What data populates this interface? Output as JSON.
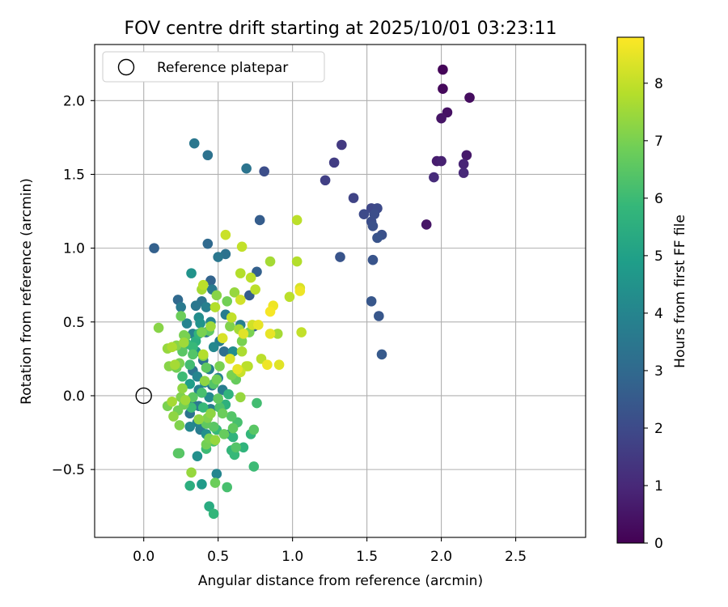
{
  "chart_data": {
    "type": "scatter",
    "title": "FOV centre drift starting at 2025/10/01 03:23:11",
    "xlabel": "Angular distance from reference (arcmin)",
    "ylabel": "Rotation from reference (arcmin)",
    "xlim": [
      -0.33,
      2.97
    ],
    "ylim": [
      -0.96,
      2.38
    ],
    "x_ticks": [
      0.0,
      0.5,
      1.0,
      1.5,
      2.0,
      2.5
    ],
    "x_tick_labels": [
      "0.0",
      "0.5",
      "1.0",
      "1.5",
      "2.0",
      "2.5"
    ],
    "y_ticks": [
      -0.5,
      0.0,
      0.5,
      1.0,
      1.5,
      2.0
    ],
    "y_tick_labels": [
      "−0.5",
      "0.0",
      "0.5",
      "1.0",
      "1.5",
      "2.0"
    ],
    "grid": true,
    "legend": {
      "location": "upper-left",
      "entries": [
        {
          "label": "Reference platepar",
          "marker": "open-circle"
        }
      ]
    },
    "reference_point": {
      "x": 0.0,
      "y": 0.0
    },
    "colorbar": {
      "label": "Hours from first FF file",
      "min": 0,
      "max": 8.8,
      "ticks": [
        0,
        1,
        2,
        3,
        4,
        5,
        6,
        7,
        8
      ],
      "tick_labels": [
        "0",
        "1",
        "2",
        "3",
        "4",
        "5",
        "6",
        "7",
        "8"
      ],
      "colormap": "viridis"
    },
    "colormap_stops": [
      "#440154",
      "#482878",
      "#3e4989",
      "#31688e",
      "#26828e",
      "#1f9e89",
      "#35b779",
      "#6ece58",
      "#b5de2b",
      "#fde725"
    ],
    "points": [
      {
        "x": 2.01,
        "y": 2.21,
        "h": 0.1
      },
      {
        "x": 2.01,
        "y": 2.08,
        "h": 0.2
      },
      {
        "x": 2.19,
        "y": 2.02,
        "h": 0.3
      },
      {
        "x": 2.04,
        "y": 1.92,
        "h": 0.4
      },
      {
        "x": 2.0,
        "y": 1.88,
        "h": 0.5
      },
      {
        "x": 2.17,
        "y": 1.63,
        "h": 0.6
      },
      {
        "x": 1.97,
        "y": 1.59,
        "h": 0.7
      },
      {
        "x": 2.0,
        "y": 1.59,
        "h": 0.8
      },
      {
        "x": 2.15,
        "y": 1.57,
        "h": 0.9
      },
      {
        "x": 2.15,
        "y": 1.51,
        "h": 1.0
      },
      {
        "x": 1.95,
        "y": 1.48,
        "h": 1.1
      },
      {
        "x": 1.9,
        "y": 1.16,
        "h": 0.5
      },
      {
        "x": 1.33,
        "y": 1.7,
        "h": 1.5
      },
      {
        "x": 1.28,
        "y": 1.58,
        "h": 1.6
      },
      {
        "x": 1.22,
        "y": 1.46,
        "h": 1.7
      },
      {
        "x": 1.41,
        "y": 1.34,
        "h": 1.8
      },
      {
        "x": 1.53,
        "y": 1.27,
        "h": 1.9
      },
      {
        "x": 1.57,
        "y": 1.27,
        "h": 2.0
      },
      {
        "x": 1.48,
        "y": 1.23,
        "h": 2.0
      },
      {
        "x": 1.55,
        "y": 1.23,
        "h": 2.1
      },
      {
        "x": 1.53,
        "y": 1.18,
        "h": 2.1
      },
      {
        "x": 1.54,
        "y": 1.15,
        "h": 2.2
      },
      {
        "x": 1.6,
        "y": 1.09,
        "h": 2.2
      },
      {
        "x": 1.57,
        "y": 1.07,
        "h": 2.3
      },
      {
        "x": 1.32,
        "y": 0.94,
        "h": 2.3
      },
      {
        "x": 1.54,
        "y": 0.92,
        "h": 2.3
      },
      {
        "x": 1.53,
        "y": 0.64,
        "h": 2.4
      },
      {
        "x": 1.58,
        "y": 0.54,
        "h": 2.4
      },
      {
        "x": 1.6,
        "y": 0.28,
        "h": 2.5
      },
      {
        "x": 0.81,
        "y": 1.52,
        "h": 2.1
      },
      {
        "x": 0.78,
        "y": 1.19,
        "h": 2.6
      },
      {
        "x": 0.07,
        "y": 1.0,
        "h": 2.7
      },
      {
        "x": 0.43,
        "y": 1.63,
        "h": 3.3
      },
      {
        "x": 0.34,
        "y": 1.71,
        "h": 3.5
      },
      {
        "x": 0.69,
        "y": 1.54,
        "h": 3.4
      },
      {
        "x": 0.43,
        "y": 1.03,
        "h": 3.0
      },
      {
        "x": 0.55,
        "y": 0.96,
        "h": 3.3
      },
      {
        "x": 0.5,
        "y": 0.94,
        "h": 3.5
      },
      {
        "x": 0.76,
        "y": 0.84,
        "h": 2.7
      },
      {
        "x": 0.32,
        "y": 0.83,
        "h": 4.5
      },
      {
        "x": 0.45,
        "y": 0.78,
        "h": 2.8
      },
      {
        "x": 0.4,
        "y": 0.74,
        "h": 4.2
      },
      {
        "x": 0.46,
        "y": 0.72,
        "h": 3.6
      },
      {
        "x": 0.23,
        "y": 0.65,
        "h": 3.0
      },
      {
        "x": 0.71,
        "y": 0.68,
        "h": 2.6
      },
      {
        "x": 0.39,
        "y": 0.64,
        "h": 3.4
      },
      {
        "x": 0.35,
        "y": 0.61,
        "h": 3.5
      },
      {
        "x": 0.42,
        "y": 0.6,
        "h": 3.8
      },
      {
        "x": 0.25,
        "y": 0.6,
        "h": 3.6
      },
      {
        "x": 0.55,
        "y": 0.55,
        "h": 3.7
      },
      {
        "x": 0.37,
        "y": 0.53,
        "h": 4.3
      },
      {
        "x": 0.29,
        "y": 0.49,
        "h": 3.9
      },
      {
        "x": 0.45,
        "y": 0.5,
        "h": 4.0
      },
      {
        "x": 0.38,
        "y": 0.49,
        "h": 4.5
      },
      {
        "x": 0.65,
        "y": 0.48,
        "h": 3.8
      },
      {
        "x": 0.74,
        "y": 0.47,
        "h": 2.8
      },
      {
        "x": 0.42,
        "y": 0.43,
        "h": 3.6
      },
      {
        "x": 0.33,
        "y": 0.42,
        "h": 3.9
      },
      {
        "x": 0.51,
        "y": 0.37,
        "h": 3.7
      },
      {
        "x": 0.47,
        "y": 0.33,
        "h": 4.1
      },
      {
        "x": 0.35,
        "y": 0.3,
        "h": 4.4
      },
      {
        "x": 0.54,
        "y": 0.3,
        "h": 3.2
      },
      {
        "x": 0.6,
        "y": 0.3,
        "h": 4.3
      },
      {
        "x": 0.4,
        "y": 0.24,
        "h": 3.3
      },
      {
        "x": 0.44,
        "y": 0.18,
        "h": 3.8
      },
      {
        "x": 0.33,
        "y": 0.17,
        "h": 3.4
      },
      {
        "x": 0.36,
        "y": 0.13,
        "h": 4.0
      },
      {
        "x": 0.5,
        "y": 0.12,
        "h": 3.9
      },
      {
        "x": 0.41,
        "y": 0.09,
        "h": 4.2
      },
      {
        "x": 0.31,
        "y": 0.08,
        "h": 4.9
      },
      {
        "x": 0.46,
        "y": 0.07,
        "h": 3.5
      },
      {
        "x": 0.53,
        "y": 0.04,
        "h": 3.7
      },
      {
        "x": 0.37,
        "y": 0.04,
        "h": 3.9
      },
      {
        "x": 0.44,
        "y": -0.01,
        "h": 4.2
      },
      {
        "x": 0.32,
        "y": -0.04,
        "h": 3.3
      },
      {
        "x": 0.37,
        "y": -0.07,
        "h": 3.6
      },
      {
        "x": 0.45,
        "y": -0.09,
        "h": 3.8
      },
      {
        "x": 0.31,
        "y": -0.12,
        "h": 3.4
      },
      {
        "x": 0.36,
        "y": -0.18,
        "h": 3.9
      },
      {
        "x": 0.31,
        "y": -0.21,
        "h": 4.1
      },
      {
        "x": 0.38,
        "y": -0.23,
        "h": 3.7
      },
      {
        "x": 0.42,
        "y": -0.26,
        "h": 4.4
      },
      {
        "x": 0.58,
        "y": -0.26,
        "h": 3.5
      },
      {
        "x": 0.36,
        "y": -0.41,
        "h": 4.4
      },
      {
        "x": 0.49,
        "y": -0.53,
        "h": 4.0
      },
      {
        "x": 0.39,
        "y": -0.6,
        "h": 4.8
      },
      {
        "x": 0.31,
        "y": -0.61,
        "h": 5.5
      },
      {
        "x": 0.44,
        "y": -0.75,
        "h": 5.4
      },
      {
        "x": 0.47,
        "y": -0.8,
        "h": 5.8
      },
      {
        "x": 0.56,
        "y": -0.62,
        "h": 6.2
      },
      {
        "x": 0.48,
        "y": -0.59,
        "h": 6.8
      },
      {
        "x": 0.32,
        "y": -0.52,
        "h": 7.4
      },
      {
        "x": 0.23,
        "y": -0.39,
        "h": 6.5
      },
      {
        "x": 0.24,
        "y": -0.2,
        "h": 7.1
      },
      {
        "x": 0.2,
        "y": -0.14,
        "h": 7.3
      },
      {
        "x": 0.16,
        "y": -0.07,
        "h": 7.0
      },
      {
        "x": 0.19,
        "y": -0.04,
        "h": 7.6
      },
      {
        "x": 0.25,
        "y": -0.01,
        "h": 7.1
      },
      {
        "x": 0.28,
        "y": -0.03,
        "h": 7.5
      },
      {
        "x": 0.23,
        "y": -0.1,
        "h": 6.9
      },
      {
        "x": 0.26,
        "y": 0.05,
        "h": 7.3
      },
      {
        "x": 0.17,
        "y": 0.2,
        "h": 7.2
      },
      {
        "x": 0.21,
        "y": 0.21,
        "h": 7.6
      },
      {
        "x": 0.24,
        "y": 0.22,
        "h": 7.0
      },
      {
        "x": 0.16,
        "y": 0.32,
        "h": 7.4
      },
      {
        "x": 0.19,
        "y": 0.33,
        "h": 7.7
      },
      {
        "x": 0.22,
        "y": 0.34,
        "h": 7.2
      },
      {
        "x": 0.27,
        "y": 0.36,
        "h": 7.5
      },
      {
        "x": 0.27,
        "y": 0.41,
        "h": 7.0
      },
      {
        "x": 0.1,
        "y": 0.46,
        "h": 7.2
      },
      {
        "x": 0.25,
        "y": 0.54,
        "h": 6.8
      },
      {
        "x": 0.39,
        "y": 0.72,
        "h": 7.6
      },
      {
        "x": 0.4,
        "y": 0.75,
        "h": 7.9
      },
      {
        "x": 0.49,
        "y": 0.68,
        "h": 7.2
      },
      {
        "x": 0.48,
        "y": 0.6,
        "h": 7.8
      },
      {
        "x": 0.56,
        "y": 0.64,
        "h": 6.9
      },
      {
        "x": 0.61,
        "y": 0.7,
        "h": 7.4
      },
      {
        "x": 0.65,
        "y": 0.65,
        "h": 8.2
      },
      {
        "x": 0.65,
        "y": 0.83,
        "h": 7.8
      },
      {
        "x": 0.72,
        "y": 0.8,
        "h": 7.9
      },
      {
        "x": 0.75,
        "y": 0.72,
        "h": 7.9
      },
      {
        "x": 0.66,
        "y": 1.01,
        "h": 8.0
      },
      {
        "x": 0.55,
        "y": 1.09,
        "h": 8.1
      },
      {
        "x": 0.85,
        "y": 0.91,
        "h": 7.6
      },
      {
        "x": 0.87,
        "y": 0.61,
        "h": 8.6
      },
      {
        "x": 0.85,
        "y": 0.57,
        "h": 8.7
      },
      {
        "x": 0.98,
        "y": 0.67,
        "h": 7.9
      },
      {
        "x": 1.03,
        "y": 1.19,
        "h": 7.9
      },
      {
        "x": 1.03,
        "y": 0.91,
        "h": 7.8
      },
      {
        "x": 1.05,
        "y": 0.73,
        "h": 8.3
      },
      {
        "x": 1.05,
        "y": 0.71,
        "h": 8.6
      },
      {
        "x": 1.06,
        "y": 0.43,
        "h": 8.0
      },
      {
        "x": 0.9,
        "y": 0.42,
        "h": 7.6
      },
      {
        "x": 0.85,
        "y": 0.42,
        "h": 8.5
      },
      {
        "x": 0.73,
        "y": 0.48,
        "h": 8.2
      },
      {
        "x": 0.77,
        "y": 0.48,
        "h": 8.5
      },
      {
        "x": 0.59,
        "y": 0.53,
        "h": 8.0
      },
      {
        "x": 0.67,
        "y": 0.42,
        "h": 8.4
      },
      {
        "x": 0.64,
        "y": 0.45,
        "h": 7.6
      },
      {
        "x": 0.58,
        "y": 0.47,
        "h": 7.1
      },
      {
        "x": 0.53,
        "y": 0.39,
        "h": 8.3
      },
      {
        "x": 0.45,
        "y": 0.47,
        "h": 7.5
      },
      {
        "x": 0.39,
        "y": 0.43,
        "h": 7.0
      },
      {
        "x": 0.44,
        "y": 0.44,
        "h": 6.6
      },
      {
        "x": 0.66,
        "y": 0.37,
        "h": 7.0
      },
      {
        "x": 0.66,
        "y": 0.3,
        "h": 7.7
      },
      {
        "x": 0.58,
        "y": 0.25,
        "h": 8.3
      },
      {
        "x": 0.69,
        "y": 0.2,
        "h": 7.9
      },
      {
        "x": 0.63,
        "y": 0.18,
        "h": 8.5
      },
      {
        "x": 0.65,
        "y": 0.16,
        "h": 8.1
      },
      {
        "x": 0.59,
        "y": 0.14,
        "h": 7.0
      },
      {
        "x": 0.62,
        "y": 0.11,
        "h": 6.7
      },
      {
        "x": 0.49,
        "y": 0.11,
        "h": 6.9
      },
      {
        "x": 0.47,
        "y": 0.08,
        "h": 6.4
      },
      {
        "x": 0.39,
        "y": 0.02,
        "h": 6.2
      },
      {
        "x": 0.41,
        "y": 0.1,
        "h": 7.3
      },
      {
        "x": 0.42,
        "y": 0.19,
        "h": 6.6
      },
      {
        "x": 0.51,
        "y": 0.2,
        "h": 7.0
      },
      {
        "x": 0.4,
        "y": 0.28,
        "h": 7.8
      },
      {
        "x": 0.4,
        "y": 0.27,
        "h": 7.1
      },
      {
        "x": 0.33,
        "y": 0.28,
        "h": 6.4
      },
      {
        "x": 0.31,
        "y": 0.21,
        "h": 6.1
      },
      {
        "x": 0.33,
        "y": 0.33,
        "h": 5.9
      },
      {
        "x": 0.37,
        "y": 0.42,
        "h": 5.7
      },
      {
        "x": 0.35,
        "y": 0.37,
        "h": 5.5
      },
      {
        "x": 0.29,
        "y": 0.35,
        "h": 5.9
      },
      {
        "x": 0.28,
        "y": 0.4,
        "h": 6.9
      },
      {
        "x": 0.26,
        "y": 0.3,
        "h": 6.5
      },
      {
        "x": 0.22,
        "y": 0.19,
        "h": 6.9
      },
      {
        "x": 0.26,
        "y": 0.13,
        "h": 6.0
      },
      {
        "x": 0.33,
        "y": -0.01,
        "h": 6.5
      },
      {
        "x": 0.27,
        "y": -0.06,
        "h": 6.9
      },
      {
        "x": 0.32,
        "y": -0.08,
        "h": 6.0
      },
      {
        "x": 0.4,
        "y": -0.08,
        "h": 5.9
      },
      {
        "x": 0.45,
        "y": -0.12,
        "h": 7.3
      },
      {
        "x": 0.43,
        "y": -0.15,
        "h": 7.1
      },
      {
        "x": 0.37,
        "y": -0.16,
        "h": 7.3
      },
      {
        "x": 0.42,
        "y": -0.19,
        "h": 6.6
      },
      {
        "x": 0.47,
        "y": -0.21,
        "h": 6.5
      },
      {
        "x": 0.49,
        "y": -0.23,
        "h": 5.9
      },
      {
        "x": 0.44,
        "y": -0.29,
        "h": 7.0
      },
      {
        "x": 0.47,
        "y": -0.31,
        "h": 6.2
      },
      {
        "x": 0.42,
        "y": -0.33,
        "h": 6.9
      },
      {
        "x": 0.42,
        "y": -0.36,
        "h": 6.0
      },
      {
        "x": 0.48,
        "y": -0.3,
        "h": 7.4
      },
      {
        "x": 0.51,
        "y": -0.08,
        "h": 6.3
      },
      {
        "x": 0.55,
        "y": -0.06,
        "h": 5.6
      },
      {
        "x": 0.5,
        "y": -0.02,
        "h": 6.6
      },
      {
        "x": 0.57,
        "y": 0.01,
        "h": 5.7
      },
      {
        "x": 0.53,
        "y": -0.12,
        "h": 6.8
      },
      {
        "x": 0.59,
        "y": -0.14,
        "h": 6.4
      },
      {
        "x": 0.63,
        "y": -0.18,
        "h": 6.2
      },
      {
        "x": 0.6,
        "y": -0.22,
        "h": 6.6
      },
      {
        "x": 0.54,
        "y": -0.26,
        "h": 6.7
      },
      {
        "x": 0.6,
        "y": -0.28,
        "h": 5.7
      },
      {
        "x": 0.62,
        "y": -0.35,
        "h": 6.4
      },
      {
        "x": 0.59,
        "y": -0.37,
        "h": 5.8
      },
      {
        "x": 0.61,
        "y": -0.4,
        "h": 5.9
      },
      {
        "x": 0.67,
        "y": -0.35,
        "h": 5.7
      },
      {
        "x": 0.72,
        "y": -0.26,
        "h": 5.8
      },
      {
        "x": 0.74,
        "y": -0.23,
        "h": 6.5
      },
      {
        "x": 0.76,
        "y": -0.05,
        "h": 6.1
      },
      {
        "x": 0.74,
        "y": -0.48,
        "h": 6.0
      },
      {
        "x": 0.65,
        "y": -0.01,
        "h": 7.4
      },
      {
        "x": 0.7,
        "y": 0.2,
        "h": 7.8
      },
      {
        "x": 0.79,
        "y": 0.25,
        "h": 7.9
      },
      {
        "x": 0.83,
        "y": 0.21,
        "h": 8.6
      },
      {
        "x": 0.91,
        "y": 0.21,
        "h": 8.4
      },
      {
        "x": 0.71,
        "y": 0.43,
        "h": 7.0
      },
      {
        "x": 0.24,
        "y": -0.39,
        "h": 6.4
      }
    ]
  }
}
